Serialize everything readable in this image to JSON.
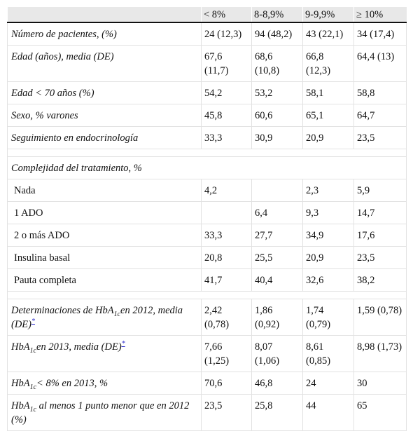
{
  "table": {
    "headers": [
      "",
      "< 8%",
      "8-8,9%",
      "9-9,9%",
      "≥ 10%"
    ],
    "rows": {
      "pacientes": {
        "label": "Número de pacientes, (%)",
        "v": [
          "24 (12,3)",
          "94 (48,2)",
          "43 (22,1)",
          "34 (17,4)"
        ]
      },
      "edad": {
        "label": "Edad (años), media (DE)",
        "v": [
          "67,6 (11,7)",
          "68,6 (10,8)",
          "66,8 (12,3)",
          "64,4 (13)"
        ]
      },
      "edad70": {
        "label": "Edad < 70 años (%)",
        "v": [
          "54,2",
          "53,2",
          "58,1",
          "58,8"
        ]
      },
      "sexo": {
        "label": "Sexo, % varones",
        "v": [
          "45,8",
          "60,6",
          "65,1",
          "64,7"
        ]
      },
      "seguimiento": {
        "label": "Seguimiento en endocrinología",
        "v": [
          "33,3",
          "30,9",
          "20,9",
          "23,5"
        ]
      },
      "complejidad": {
        "label": "Complejidad del tratamiento, %"
      },
      "nada": {
        "label": "Nada",
        "v": [
          "4,2",
          "",
          "2,3",
          "5,9"
        ]
      },
      "ado1": {
        "label": "1 ADO",
        "v": [
          "",
          "6,4",
          "9,3",
          "14,7"
        ]
      },
      "ado2": {
        "label": "2 o más ADO",
        "v": [
          "33,3",
          "27,7",
          "34,9",
          "17,6"
        ]
      },
      "insulina": {
        "label": "Insulina basal",
        "v": [
          "20,8",
          "25,5",
          "20,9",
          "23,5"
        ]
      },
      "pauta": {
        "label": "Pauta completa",
        "v": [
          "41,7",
          "40,4",
          "32,6",
          "38,2"
        ]
      },
      "determ": {
        "pre": "Determinaciones de HbA",
        "sub": "1c",
        "post": "en 2012, media (DE)",
        "note": "*",
        "v": [
          "2,42 (0,78)",
          "1,86 (0,92)",
          "1,74 (0,79)",
          "1,59 (0,78)"
        ]
      },
      "hba2013": {
        "pre": "HbA",
        "sub": "1c",
        "post": "en 2013, media (DE)",
        "note": "*",
        "v": [
          "7,66 (1,25)",
          "8,07 (1,06)",
          "8,61 (0,85)",
          "8,98 (1,73)"
        ]
      },
      "hba8": {
        "pre": "HbA",
        "sub": "1c",
        "post": "< 8% en 2013, %",
        "v": [
          "70,6",
          "46,8",
          "24",
          "30"
        ]
      },
      "hba1punto": {
        "pre": "HbA",
        "sub": "1c",
        "post": " al menos 1 punto menor que en 2012 (%)",
        "v": [
          "23,5",
          "25,8",
          "44",
          "65"
        ]
      }
    }
  }
}
